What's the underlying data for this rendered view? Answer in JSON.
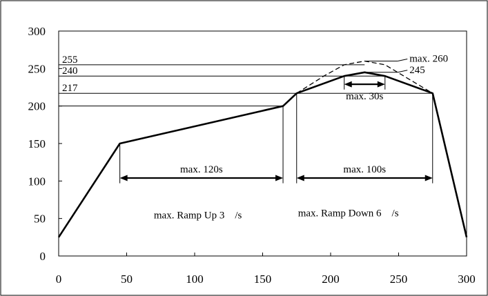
{
  "chart_data": {
    "type": "line",
    "title": "",
    "xlabel": "",
    "ylabel": "",
    "xlim": [
      0,
      300
    ],
    "ylim": [
      0,
      300
    ],
    "x_ticks": [
      0,
      50,
      100,
      150,
      200,
      250,
      300
    ],
    "y_ticks": [
      0,
      50,
      100,
      150,
      200,
      250,
      300
    ],
    "grid": false,
    "legend": "none",
    "series": [
      {
        "style": "solid",
        "color": "#000000",
        "points": [
          [
            0,
            25
          ],
          [
            45,
            150
          ],
          [
            165,
            200
          ],
          [
            175,
            217
          ],
          [
            210,
            240
          ],
          [
            225,
            245
          ],
          [
            240,
            240
          ],
          [
            275,
            217
          ],
          [
            300,
            25
          ]
        ]
      },
      {
        "style": "dashed",
        "color": "#000000",
        "points": [
          [
            175,
            217
          ],
          [
            195,
            240
          ],
          [
            210,
            255
          ],
          [
            225,
            260
          ],
          [
            240,
            255
          ],
          [
            275,
            217
          ]
        ]
      }
    ],
    "reference_lines": [
      {
        "label": "255",
        "y": 255,
        "label_side": "left",
        "x_end": 225
      },
      {
        "label": "240",
        "y": 240,
        "label_side": "left",
        "x_end": 240
      },
      {
        "label": "217",
        "y": 217,
        "label_side": "left",
        "x_end": 275
      },
      {
        "label": "",
        "y": 200,
        "label_side": "left",
        "x_end": 165
      },
      {
        "label": "max. 260",
        "y": 260,
        "label_side": "right",
        "x_start": 225
      },
      {
        "label": "245",
        "y": 245,
        "label_side": "right",
        "x_start": 225
      }
    ],
    "spans": [
      {
        "label": "max. 120s",
        "x1": 45,
        "x2": 165,
        "y": 104
      },
      {
        "label": "max. 100s",
        "x1": 175,
        "x2": 275,
        "y": 104
      },
      {
        "label": "max. 30s",
        "x1": 210,
        "x2": 240,
        "y": 229
      }
    ],
    "annotations": [
      {
        "text": "max. Ramp Up 3　/s",
        "x": 70,
        "y": 50
      },
      {
        "text": "max. Ramp Down 6　/s",
        "x": 176,
        "y": 53
      }
    ]
  }
}
